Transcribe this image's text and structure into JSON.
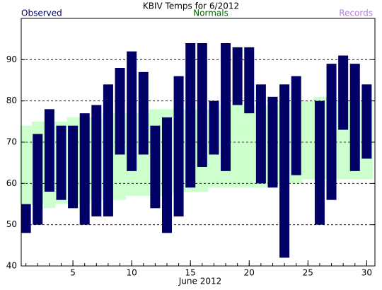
{
  "chart_data": {
    "type": "range-bar",
    "title": "KBIV Temps for 6/2012",
    "x_label": "June 2012",
    "x": [
      1,
      2,
      3,
      4,
      5,
      6,
      7,
      8,
      9,
      10,
      11,
      12,
      13,
      14,
      15,
      16,
      17,
      18,
      19,
      20,
      21,
      22,
      23,
      24,
      25,
      26,
      27,
      28,
      29,
      30
    ],
    "series": [
      {
        "name": "Observed",
        "color": "#000066",
        "high": [
          55,
          72,
          78,
          74,
          74,
          77,
          79,
          84,
          88,
          92,
          87,
          74,
          76,
          86,
          94,
          94,
          80,
          94,
          93,
          93,
          84,
          81,
          84,
          86,
          null,
          80,
          89,
          91,
          89,
          84
        ],
        "low": [
          48,
          50,
          58,
          56,
          54,
          50,
          52,
          52,
          67,
          63,
          67,
          54,
          48,
          52,
          59,
          64,
          67,
          63,
          79,
          77,
          60,
          59,
          42,
          62,
          null,
          50,
          56,
          73,
          63,
          66
        ]
      },
      {
        "name": "Normals",
        "color": "#006600",
        "band_color": "#ccffcc",
        "high": [
          74,
          75,
          75,
          75,
          76,
          76,
          76,
          77,
          77,
          77,
          77,
          78,
          78,
          78,
          78,
          78,
          78,
          79,
          79,
          79,
          79,
          79,
          80,
          80,
          80,
          81,
          81,
          80,
          80,
          80
        ],
        "low": [
          55,
          55,
          54,
          55,
          55,
          55,
          56,
          56,
          56,
          57,
          57,
          57,
          57,
          58,
          58,
          58,
          59,
          59,
          59,
          59,
          59,
          60,
          60,
          60,
          61,
          61,
          61,
          61,
          61,
          61
        ]
      },
      {
        "name": "Records",
        "color": "#b080d0"
      }
    ],
    "xlim": [
      0.6,
      30.7
    ],
    "xticks": [
      5,
      10,
      15,
      20,
      25,
      30
    ],
    "ylim": [
      40,
      100
    ],
    "yticks": [
      40,
      50,
      60,
      70,
      80,
      90
    ],
    "grid": true
  }
}
